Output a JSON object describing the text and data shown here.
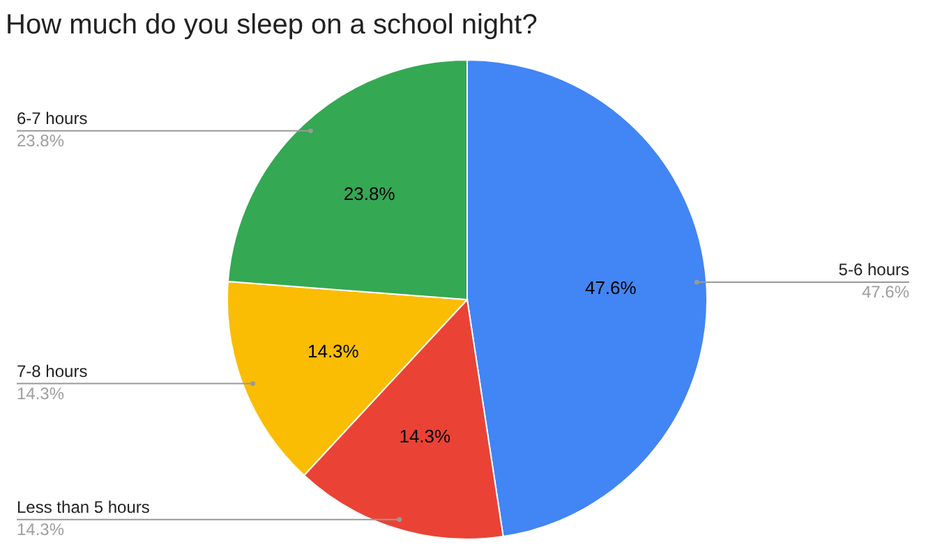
{
  "chart_data": {
    "type": "pie",
    "title": "How much do you sleep on a school night?",
    "categories": [
      "5-6 hours",
      "Less than 5 hours",
      "7-8 hours",
      "6-7 hours"
    ],
    "values": [
      47.6,
      14.3,
      14.3,
      23.8
    ],
    "colors": [
      "#4285f4",
      "#ea4335",
      "#fbbc04",
      "#34a853"
    ],
    "value_labels": [
      "47.6%",
      "14.3%",
      "14.3%",
      "23.8%"
    ]
  }
}
